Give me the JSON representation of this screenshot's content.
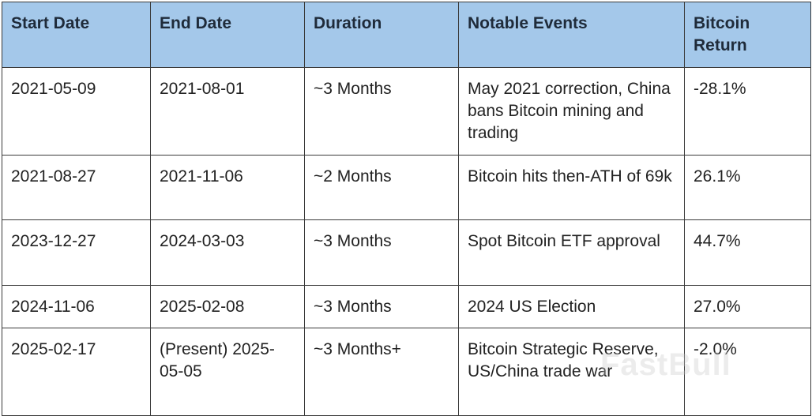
{
  "table": {
    "header": [
      "Start Date",
      "End Date",
      "Duration",
      "Notable Events",
      "Bitcoin Return"
    ],
    "rows": [
      [
        "2021-05-09",
        "2021-08-01",
        "~3 Months",
        "May 2021 correction, China bans Bitcoin mining and trading",
        "-28.1%"
      ],
      [
        "2021-08-27",
        "2021-11-06",
        "~2 Months",
        "Bitcoin hits then-ATH of 69k",
        "26.1%"
      ],
      [
        "2023-12-27",
        "2024-03-03",
        "~3 Months",
        "Spot Bitcoin ETF approval",
        "44.7%"
      ],
      [
        "2024-11-06",
        "2025-02-08",
        "~3 Months",
        "2024 US Election",
        "27.0%"
      ],
      [
        "2025-02-17",
        "(Present) 2025-05-05",
        "~3 Months+",
        "Bitcoin Strategic Reserve, US/China trade war",
        "-2.0%"
      ]
    ]
  },
  "watermark": "FastBull"
}
